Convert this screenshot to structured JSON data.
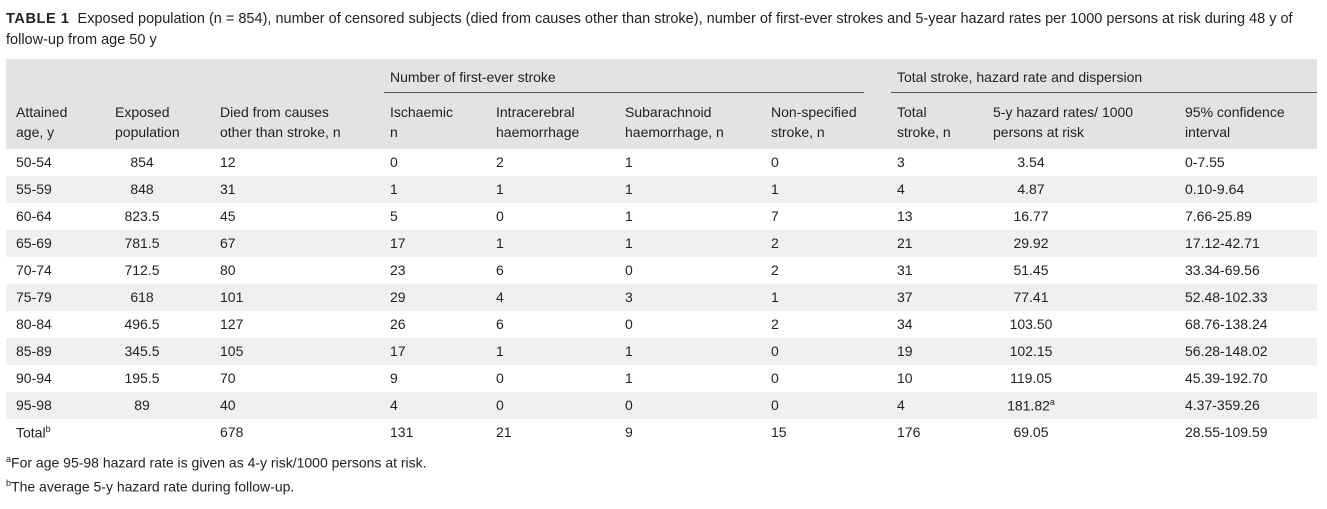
{
  "caption": {
    "label": "TABLE 1",
    "text": "Exposed population (n = 854), number of censored subjects (died from causes other than stroke), number of first-ever strokes and 5-year hazard rates per 1000 persons at risk during 48 y of follow-up from age 50 y"
  },
  "groups": {
    "first_ever": "Number of first-ever stroke",
    "total": "Total stroke, hazard rate and dispersion"
  },
  "headers": {
    "age": [
      "Attained",
      "age, y"
    ],
    "exposed": [
      "Exposed",
      "population"
    ],
    "died": [
      "Died from causes",
      "other than stroke, n"
    ],
    "isch": [
      "Ischaemic",
      "n"
    ],
    "ich": [
      "Intracerebral",
      "haemorrhage"
    ],
    "sah": [
      "Subarachnoid",
      "haemorrhage, n"
    ],
    "nonspec": [
      "Non-specified",
      "stroke, n"
    ],
    "total": [
      "Total",
      "stroke, n"
    ],
    "hazard": [
      "5-y hazard rates/ 1000",
      "persons at risk"
    ],
    "ci": [
      "95% confidence",
      "interval"
    ]
  },
  "rows": [
    [
      "50-54",
      "854",
      "12",
      "0",
      "2",
      "1",
      "0",
      "3",
      "3.54",
      "0-7.55"
    ],
    [
      "55-59",
      "848",
      "31",
      "1",
      "1",
      "1",
      "1",
      "4",
      "4.87",
      "0.10-9.64"
    ],
    [
      "60-64",
      "823.5",
      "45",
      "5",
      "0",
      "1",
      "7",
      "13",
      "16.77",
      "7.66-25.89"
    ],
    [
      "65-69",
      "781.5",
      "67",
      "17",
      "1",
      "1",
      "2",
      "21",
      "29.92",
      "17.12-42.71"
    ],
    [
      "70-74",
      "712.5",
      "80",
      "23",
      "6",
      "0",
      "2",
      "31",
      "51.45",
      "33.34-69.56"
    ],
    [
      "75-79",
      "618",
      "101",
      "29",
      "4",
      "3",
      "1",
      "37",
      "77.41",
      "52.48-102.33"
    ],
    [
      "80-84",
      "496.5",
      "127",
      "26",
      "6",
      "0",
      "2",
      "34",
      "103.50",
      "68.76-138.24"
    ],
    [
      "85-89",
      "345.5",
      "105",
      "17",
      "1",
      "1",
      "0",
      "19",
      "102.15",
      "56.28-148.02"
    ],
    [
      "90-94",
      "195.5",
      "70",
      "9",
      "0",
      "1",
      "0",
      "10",
      "119.05",
      "45.39-192.70"
    ],
    [
      "95-98",
      "89",
      "40",
      "4",
      "0",
      "0",
      "0",
      "4",
      "181.82",
      "4.37-359.26"
    ],
    [
      "Total",
      "",
      "678",
      "131",
      "21",
      "9",
      "15",
      "176",
      "69.05",
      "28.55-109.59"
    ]
  ],
  "marks": {
    "a": "a",
    "b": "b"
  },
  "footnotes": {
    "a": "For age 95-98 hazard rate is given as 4-y risk/1000 persons at risk.",
    "b": "The average 5-y hazard rate during follow-up."
  }
}
